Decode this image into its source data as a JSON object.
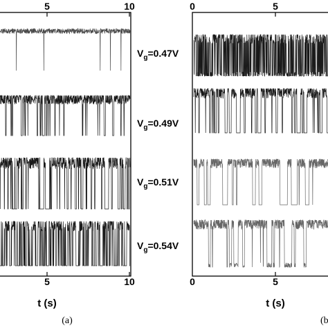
{
  "chart_data": [
    {
      "type": "line",
      "panel_label": "(a)",
      "xlabel": "t (s)",
      "xlim": [
        0,
        10
      ],
      "x_ticks_top": [
        "5",
        "10"
      ],
      "x_ticks_bottom": [
        "5",
        "10"
      ],
      "series": [
        {
          "name": "Vg=0.47V",
          "vg_base": "V",
          "vg_sub": "g",
          "vg_value": "=0.47V",
          "color": "#4a4a4a",
          "noise": 0.06,
          "rate_down": 0.3,
          "rate_up": 80,
          "dip": 1.0,
          "seed": 11
        },
        {
          "name": "Vg=0.49V",
          "vg_base": "V",
          "vg_sub": "g",
          "vg_value": "=0.49V",
          "color": "#1a1a1a",
          "noise": 0.14,
          "rate_down": 2.6,
          "rate_up": 22,
          "dip": 1.0,
          "seed": 23
        },
        {
          "name": "Vg=0.51V",
          "vg_base": "V",
          "vg_sub": "g",
          "vg_value": "=0.51V",
          "color": "#1a1a1a",
          "noise": 0.14,
          "rate_down": 5.5,
          "rate_up": 14,
          "dip": 1.0,
          "seed": 37
        },
        {
          "name": "Vg=0.54V",
          "vg_base": "V",
          "vg_sub": "g",
          "vg_value": "=0.54V",
          "color": "#1a1a1a",
          "noise": 0.14,
          "rate_down": 14,
          "rate_up": 16,
          "dip": 1.0,
          "seed": 51
        }
      ]
    },
    {
      "type": "line",
      "panel_label": "(b)",
      "xlabel": "t (s)",
      "xlim": [
        0,
        10
      ],
      "x_ticks_top": [
        "0",
        "5"
      ],
      "x_ticks_bottom": [
        "0",
        "5"
      ],
      "series": [
        {
          "color": "#1a1a1a",
          "noise": 0.14,
          "rate_down": 32,
          "rate_up": 34,
          "dip": 0.9,
          "seed": 61
        },
        {
          "color": "#1a1a1a",
          "noise": 0.14,
          "rate_down": 5,
          "rate_up": 11,
          "dip": 1.0,
          "seed": 73
        },
        {
          "color": "#666666",
          "noise": 0.12,
          "rate_down": 1.3,
          "rate_up": 3.2,
          "dip": 1.0,
          "seed": 89
        },
        {
          "color": "#666666",
          "noise": 0.12,
          "rate_down": 2.0,
          "rate_up": 7,
          "dip": 0.9,
          "seed": 97
        }
      ]
    }
  ]
}
